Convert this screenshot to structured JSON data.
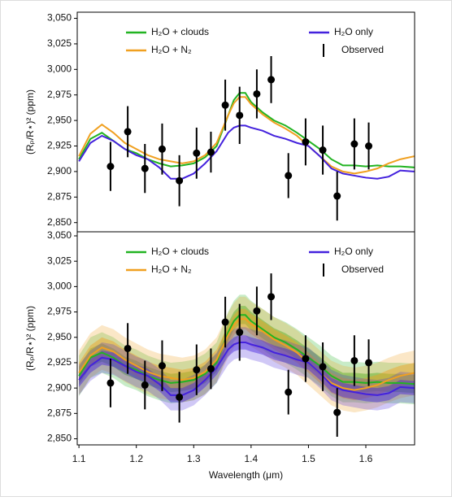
{
  "chart_data": [
    {
      "type": "line",
      "ylabel": "(Rₚ/R⋆)² (ppm)",
      "xlim": [
        1.097,
        1.685
      ],
      "ylim": [
        2841,
        3056
      ],
      "yticks": [
        {
          "value": 2850,
          "label": "2,850"
        },
        {
          "value": 2875,
          "label": "2,875"
        },
        {
          "value": 2900,
          "label": "2,900"
        },
        {
          "value": 2925,
          "label": "2,925"
        },
        {
          "value": 2950,
          "label": "2,950"
        },
        {
          "value": 2975,
          "label": "2,975"
        },
        {
          "value": 3000,
          "label": "3,000"
        },
        {
          "value": 3025,
          "label": "3,025"
        },
        {
          "value": 3050,
          "label": "3,050"
        }
      ],
      "x": [
        1.1,
        1.12,
        1.14,
        1.16,
        1.18,
        1.2,
        1.22,
        1.24,
        1.26,
        1.28,
        1.3,
        1.32,
        1.34,
        1.36,
        1.37,
        1.38,
        1.39,
        1.4,
        1.42,
        1.44,
        1.46,
        1.48,
        1.5,
        1.52,
        1.54,
        1.56,
        1.58,
        1.6,
        1.62,
        1.64,
        1.66,
        1.685
      ],
      "series": [
        {
          "name": "H₂O + clouds",
          "color": "#22b422",
          "values": [
            2912,
            2932,
            2938,
            2930,
            2922,
            2918,
            2912,
            2908,
            2905,
            2906,
            2908,
            2914,
            2925,
            2955,
            2970,
            2977,
            2977,
            2968,
            2958,
            2950,
            2945,
            2938,
            2930,
            2922,
            2912,
            2906,
            2906,
            2905,
            2906,
            2905,
            2905,
            2904
          ]
        },
        {
          "name": "H₂O + N₂",
          "color": "#f0a020",
          "values": [
            2915,
            2937,
            2946,
            2938,
            2928,
            2922,
            2916,
            2912,
            2910,
            2908,
            2910,
            2916,
            2928,
            2955,
            2967,
            2973,
            2973,
            2966,
            2956,
            2948,
            2942,
            2935,
            2925,
            2915,
            2905,
            2900,
            2898,
            2900,
            2903,
            2908,
            2912,
            2915
          ]
        },
        {
          "name": "H₂O only",
          "color": "#4422dd",
          "values": [
            2910,
            2928,
            2935,
            2930,
            2922,
            2916,
            2912,
            2904,
            2893,
            2893,
            2898,
            2908,
            2920,
            2938,
            2943,
            2945,
            2945,
            2943,
            2940,
            2935,
            2932,
            2928,
            2925,
            2915,
            2903,
            2898,
            2896,
            2894,
            2893,
            2895,
            2901,
            2900
          ]
        }
      ],
      "observed": {
        "name": "Observed",
        "x": [
          1.155,
          1.185,
          1.215,
          1.245,
          1.275,
          1.305,
          1.33,
          1.355,
          1.38,
          1.41,
          1.435,
          1.465,
          1.495,
          1.525,
          1.55,
          1.58,
          1.605
        ],
        "values": [
          2905,
          2939,
          2903,
          2922,
          2891,
          2918,
          2919,
          2965,
          2955,
          2976,
          2990,
          2896,
          2929,
          2921,
          2876,
          2927,
          2925
        ],
        "errors": [
          24,
          25,
          24,
          25,
          25,
          25,
          20,
          25,
          28,
          24,
          23,
          22,
          23,
          24,
          24,
          25,
          23
        ]
      }
    },
    {
      "type": "line",
      "ylabel": "(Rₚ/R⋆)² (ppm)",
      "xlabel": "Wavelength (μm)",
      "xlim": [
        1.097,
        1.685
      ],
      "ylim": [
        2844,
        3054
      ],
      "xticks": [
        1.1,
        1.2,
        1.3,
        1.4,
        1.5,
        1.6
      ],
      "yticks": [
        {
          "value": 2850,
          "label": "2,850"
        },
        {
          "value": 2875,
          "label": "2,875"
        },
        {
          "value": 2900,
          "label": "2,900"
        },
        {
          "value": 2925,
          "label": "2,925"
        },
        {
          "value": 2950,
          "label": "2,950"
        },
        {
          "value": 2975,
          "label": "2,975"
        },
        {
          "value": 3000,
          "label": "3,000"
        },
        {
          "value": 3025,
          "label": "3,025"
        },
        {
          "value": 3050,
          "label": "3,050"
        }
      ],
      "x": [
        1.1,
        1.12,
        1.14,
        1.16,
        1.18,
        1.2,
        1.22,
        1.24,
        1.26,
        1.28,
        1.3,
        1.32,
        1.34,
        1.36,
        1.37,
        1.38,
        1.39,
        1.4,
        1.42,
        1.44,
        1.46,
        1.48,
        1.5,
        1.52,
        1.54,
        1.56,
        1.58,
        1.6,
        1.62,
        1.64,
        1.66,
        1.685
      ],
      "series": [
        {
          "name": "H₂O + clouds",
          "color": "#22b422",
          "band_inner": 9,
          "band_outer": 20,
          "values": [
            2912,
            2930,
            2935,
            2930,
            2922,
            2918,
            2912,
            2908,
            2905,
            2906,
            2908,
            2914,
            2925,
            2955,
            2966,
            2972,
            2972,
            2966,
            2958,
            2950,
            2945,
            2938,
            2930,
            2922,
            2912,
            2906,
            2906,
            2905,
            2906,
            2905,
            2905,
            2904
          ]
        },
        {
          "name": "H₂O + N₂",
          "color": "#f0a020",
          "band_inner": 10,
          "band_outer": 22,
          "values": [
            2915,
            2932,
            2940,
            2936,
            2928,
            2922,
            2916,
            2912,
            2910,
            2908,
            2910,
            2916,
            2928,
            2952,
            2962,
            2968,
            2968,
            2963,
            2956,
            2948,
            2942,
            2935,
            2925,
            2915,
            2905,
            2900,
            2898,
            2900,
            2903,
            2908,
            2912,
            2915
          ]
        },
        {
          "name": "H₂O only",
          "color": "#4422dd",
          "band_inner": 7,
          "band_outer": 15,
          "values": [
            2908,
            2922,
            2930,
            2928,
            2922,
            2916,
            2912,
            2904,
            2893,
            2893,
            2898,
            2908,
            2920,
            2938,
            2943,
            2945,
            2945,
            2943,
            2940,
            2935,
            2932,
            2928,
            2925,
            2915,
            2903,
            2898,
            2896,
            2894,
            2893,
            2895,
            2901,
            2900
          ]
        }
      ],
      "observed": {
        "name": "Observed",
        "x": [
          1.155,
          1.185,
          1.215,
          1.245,
          1.275,
          1.305,
          1.33,
          1.355,
          1.38,
          1.41,
          1.435,
          1.465,
          1.495,
          1.525,
          1.55,
          1.58,
          1.605
        ],
        "values": [
          2905,
          2939,
          2903,
          2922,
          2891,
          2918,
          2919,
          2965,
          2955,
          2976,
          2990,
          2896,
          2929,
          2921,
          2876,
          2927,
          2925
        ],
        "errors": [
          24,
          25,
          24,
          25,
          25,
          25,
          20,
          25,
          28,
          24,
          23,
          22,
          23,
          24,
          24,
          25,
          23
        ]
      }
    }
  ]
}
